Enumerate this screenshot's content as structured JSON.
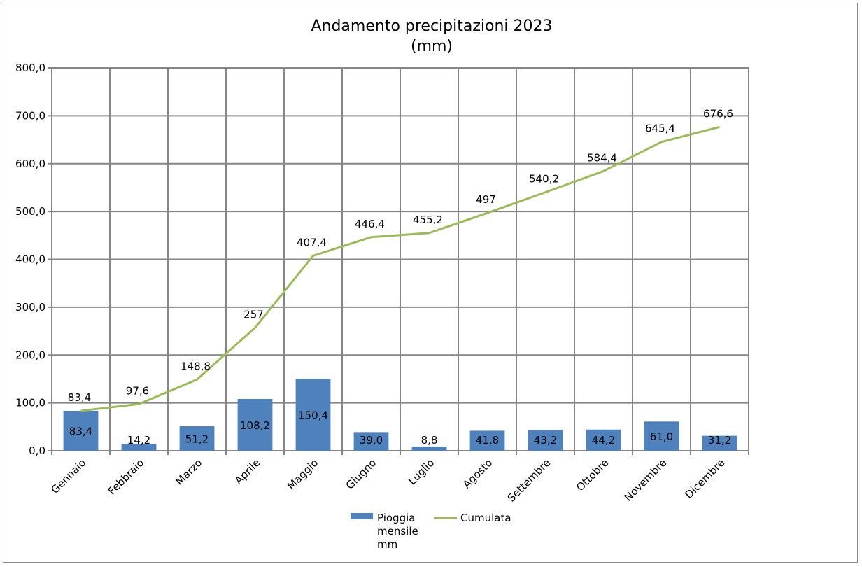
{
  "chart_data": {
    "type": "bar",
    "title": "Andamento precipitazioni  2023",
    "subtitle": "(mm)",
    "categories": [
      "Gennaio",
      "Febbraio",
      "Marzo",
      "Aprile",
      "Maggio",
      "Giugno",
      "Luglio",
      "Agosto",
      "Settembre",
      "Ottobre",
      "Novembre",
      "Dicembre"
    ],
    "ylim": [
      0,
      800
    ],
    "yticks": [
      "0,0",
      "100,0",
      "200,0",
      "300,0",
      "400,0",
      "500,0",
      "600,0",
      "700,0",
      "800,0"
    ],
    "grid": true,
    "legend_position": "bottom",
    "series": [
      {
        "name": "Pioggia mensile mm",
        "type": "bar",
        "color": "#4f81bd",
        "values": [
          83.4,
          14.2,
          51.2,
          108.2,
          150.4,
          39.0,
          8.8,
          41.8,
          43.2,
          44.2,
          61.0,
          31.2
        ],
        "labels": [
          "83,4",
          "14,2",
          "51,2",
          "108,2",
          "150,4",
          "39,0",
          "8,8",
          "41,8",
          "43,2",
          "44,2",
          "61,0",
          "31,2"
        ]
      },
      {
        "name": "Cumulata",
        "type": "line",
        "color": "#9bbb59",
        "values": [
          83.4,
          97.6,
          148.8,
          257,
          407.4,
          446.4,
          455.2,
          497,
          540.2,
          584.4,
          645.4,
          676.6
        ],
        "labels": [
          "83,4",
          "97,6",
          "148,8",
          "257",
          "407,4",
          "446,4",
          "455,2",
          "497",
          "540,2",
          "584,4",
          "645,4",
          "676,6"
        ]
      }
    ],
    "legend": {
      "bar_lines": [
        "Pioggia",
        "mensile",
        "mm"
      ],
      "line": "Cumulata"
    }
  }
}
